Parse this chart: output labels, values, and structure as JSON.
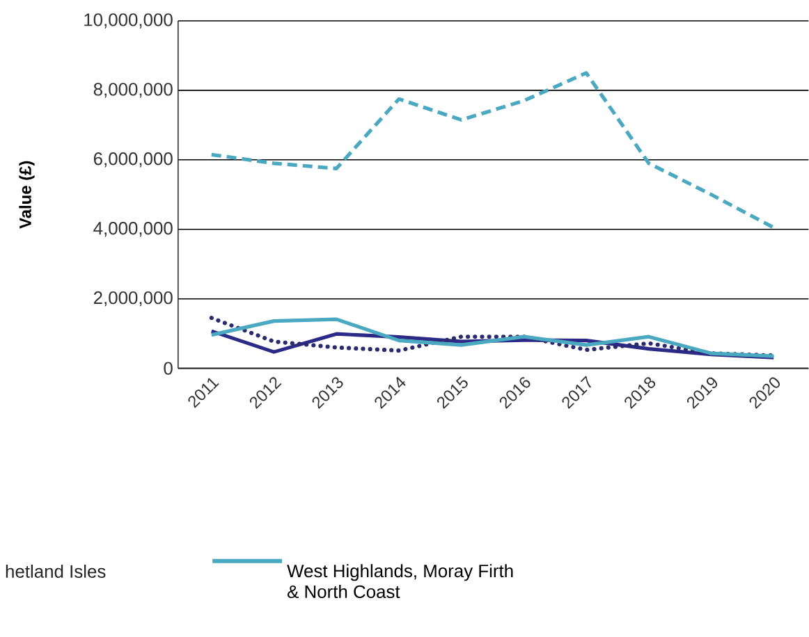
{
  "chart_data": {
    "type": "line",
    "ylabel": "Value (£)",
    "categories": [
      "2011",
      "2012",
      "2013",
      "2014",
      "2015",
      "2016",
      "2017",
      "2018",
      "2019",
      "2020"
    ],
    "series": [
      {
        "color": "#4aa8c0",
        "line_style": "dashed",
        "values": [
          6150000,
          5900000,
          5750000,
          7750000,
          7150000,
          7700000,
          8500000,
          5900000,
          5000000,
          4050000
        ]
      },
      {
        "color": "#2b2a86",
        "line_style": "solid",
        "values": [
          1070000,
          470000,
          990000,
          900000,
          770000,
          810000,
          800000,
          560000,
          400000,
          310000
        ]
      },
      {
        "color": "#2b2a6e",
        "line_style": "dotted",
        "values": [
          1450000,
          770000,
          600000,
          510000,
          910000,
          910000,
          530000,
          720000,
          430000,
          370000
        ]
      },
      {
        "name": "West Highlands, Moray Firth & North Coast",
        "color": "#4aa8c0",
        "line_style": "solid",
        "values": [
          960000,
          1360000,
          1410000,
          800000,
          670000,
          910000,
          670000,
          910000,
          430000,
          350000
        ]
      }
    ],
    "ylim": [
      0,
      10000000
    ],
    "yticks": [
      0,
      {
        "value": 2000000,
        "label": "2,000,000"
      },
      {
        "value": 4000000,
        "label": "4,000,000"
      },
      {
        "value": 6000000,
        "label": "6,000,000"
      },
      {
        "value": 8000000,
        "label": "8,000,000"
      },
      {
        "value": 10000000,
        "label": "10,000,000"
      }
    ],
    "grid": "y",
    "legend": "bottom",
    "marker": "none",
    "annotations": [
      "hetland Isles"
    ]
  }
}
